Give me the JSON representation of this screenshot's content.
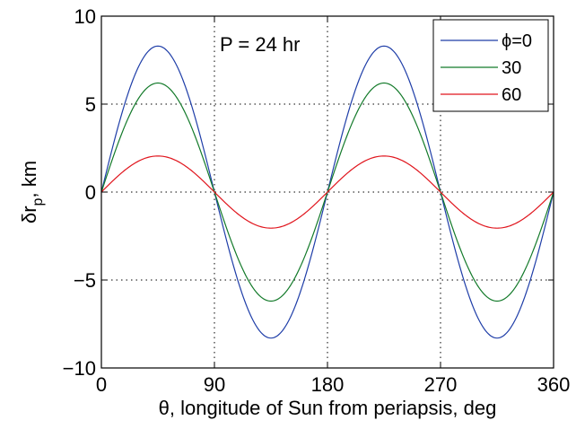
{
  "chart_data": {
    "type": "line",
    "title": "",
    "xlabel": "θ, longitude of Sun from periapsis, deg",
    "ylabel_main": "δr",
    "ylabel_sub": "p",
    "ylabel_tail": ", km",
    "annotation": "P = 24 hr",
    "xlim": [
      0,
      360
    ],
    "ylim": [
      -10,
      10
    ],
    "xticks": [
      0,
      90,
      180,
      270,
      360
    ],
    "yticks": [
      -10,
      -5,
      0,
      5,
      10
    ],
    "xtick_labels": [
      "0",
      "90",
      "180",
      "270",
      "360"
    ],
    "ytick_labels": [
      "−10",
      "−5",
      "0",
      "5",
      "10"
    ],
    "grid": true,
    "legend_position": "top-right",
    "x": [
      0,
      15,
      30,
      45,
      60,
      75,
      90,
      105,
      120,
      135,
      150,
      165,
      180,
      195,
      210,
      225,
      240,
      255,
      270,
      285,
      300,
      315,
      330,
      345,
      360
    ],
    "series": [
      {
        "name": "ϕ=0",
        "color": "#1f3ea8",
        "values": [
          0,
          4.15,
          7.19,
          8.3,
          7.19,
          4.15,
          0,
          -4.15,
          -7.19,
          -8.3,
          -7.19,
          -4.15,
          0,
          4.15,
          7.19,
          8.3,
          7.19,
          4.15,
          0,
          -4.15,
          -7.19,
          -8.3,
          -7.19,
          -4.15,
          0
        ]
      },
      {
        "name": "30",
        "color": "#137a2a",
        "values": [
          0,
          3.1,
          5.37,
          6.2,
          5.37,
          3.1,
          0,
          -3.1,
          -5.37,
          -6.2,
          -5.37,
          -3.1,
          0,
          3.1,
          5.37,
          6.2,
          5.37,
          3.1,
          0,
          -3.1,
          -5.37,
          -6.2,
          -5.37,
          -3.1,
          0
        ]
      },
      {
        "name": "60",
        "color": "#e0141c",
        "values": [
          0,
          1.03,
          1.78,
          2.05,
          1.78,
          1.03,
          0,
          -1.03,
          -1.78,
          -2.05,
          -1.78,
          -1.03,
          0,
          1.03,
          1.78,
          2.05,
          1.78,
          1.03,
          0,
          -1.03,
          -1.78,
          -2.05,
          -1.78,
          -1.03,
          0
        ]
      }
    ]
  }
}
